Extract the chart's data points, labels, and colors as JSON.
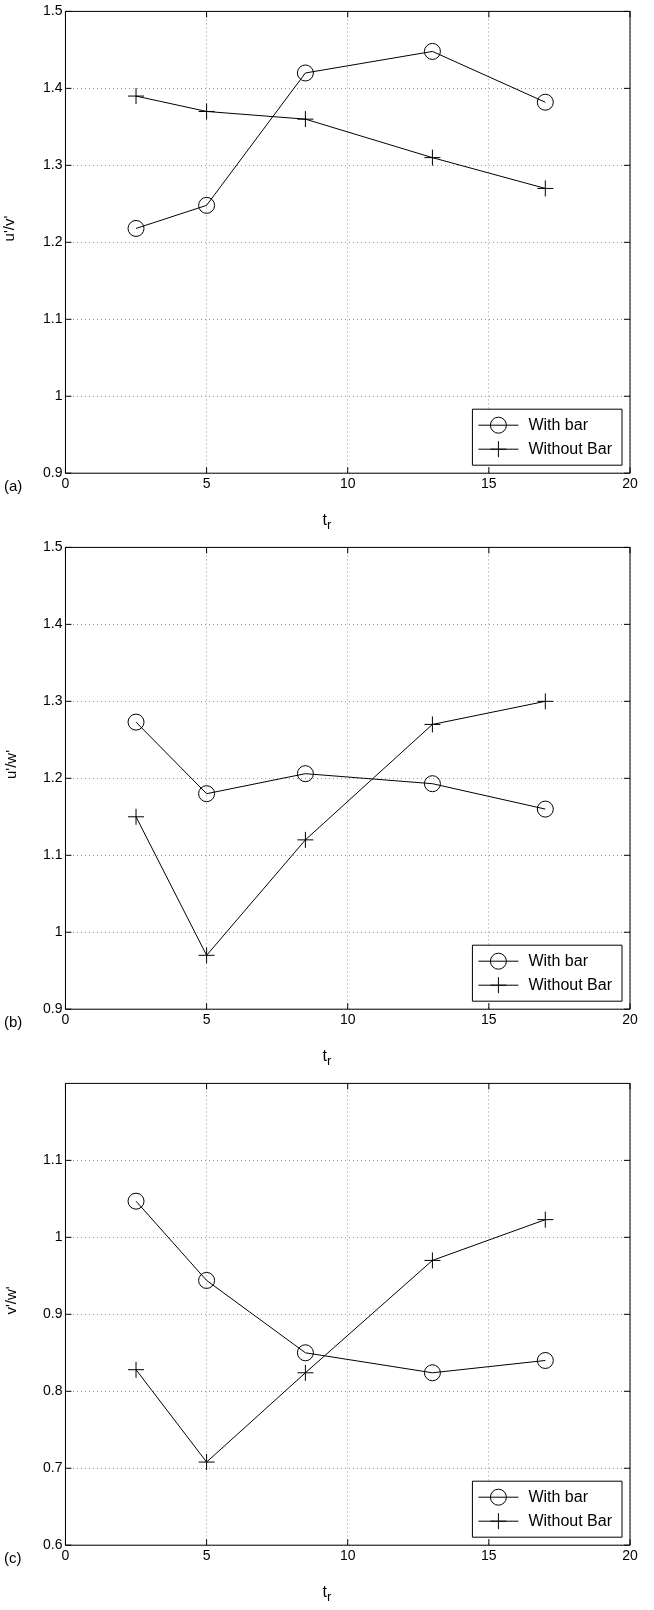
{
  "chart_data": [
    {
      "type": "line",
      "xlabel": "t$_{r}$",
      "ylabel": "u'/v'",
      "annotations": [
        "(a)"
      ],
      "x": [
        2.5,
        5,
        8.5,
        13,
        17
      ],
      "xlim": [
        0,
        20
      ],
      "xticks": [
        0,
        5,
        10,
        15,
        20
      ],
      "ylim": [
        0.9,
        1.5
      ],
      "yticks": [
        0.9,
        1,
        1.1,
        1.2,
        1.3,
        1.4,
        1.5
      ],
      "grid": true,
      "legend": "bottom right",
      "line_style": "solid",
      "series": [
        {
          "name": "With bar",
          "color": "#000000",
          "marker": "circle",
          "values": [
            1.218,
            1.248,
            1.42,
            1.448,
            1.382
          ]
        },
        {
          "name": "Without Bar",
          "color": "#000000",
          "marker": "cross",
          "values": [
            1.39,
            1.37,
            1.36,
            1.31,
            1.27
          ]
        }
      ]
    },
    {
      "type": "line",
      "xlabel": "t$_{r}$",
      "ylabel": "u'/w'",
      "annotations": [
        "(b)"
      ],
      "x": [
        2.5,
        5,
        8.5,
        13,
        17
      ],
      "xlim": [
        0,
        20
      ],
      "xticks": [
        0,
        5,
        10,
        15,
        20
      ],
      "ylim": [
        0.9,
        1.5
      ],
      "yticks": [
        0.9,
        1,
        1.1,
        1.2,
        1.3,
        1.4,
        1.5
      ],
      "grid": true,
      "legend": "bottom right",
      "line_style": "solid",
      "series": [
        {
          "name": "With bar",
          "color": "#000000",
          "marker": "circle",
          "values": [
            1.273,
            1.18,
            1.206,
            1.193,
            1.16
          ]
        },
        {
          "name": "Without Bar",
          "color": "#000000",
          "marker": "cross",
          "values": [
            1.15,
            0.97,
            1.12,
            1.27,
            1.3
          ]
        }
      ]
    },
    {
      "type": "line",
      "xlabel": "t$_{r}$",
      "ylabel": "v'/w'",
      "annotations": [
        "(c)"
      ],
      "x": [
        2.5,
        5,
        8.5,
        13,
        17
      ],
      "xlim": [
        0,
        20
      ],
      "xticks": [
        0,
        5,
        10,
        15,
        20
      ],
      "ylim": [
        0.6,
        1.2
      ],
      "yticks": [
        0.6,
        0.7,
        0.8,
        0.9,
        1,
        1.1
      ],
      "grid": true,
      "legend": "bottom right",
      "line_style": "solid",
      "series": [
        {
          "name": "With bar",
          "color": "#000000",
          "marker": "circle",
          "values": [
            1.047,
            0.944,
            0.85,
            0.824,
            0.84
          ]
        },
        {
          "name": "Without Bar",
          "color": "#000000",
          "marker": "cross",
          "values": [
            0.828,
            0.708,
            0.824,
            0.97,
            1.023
          ]
        }
      ]
    }
  ]
}
